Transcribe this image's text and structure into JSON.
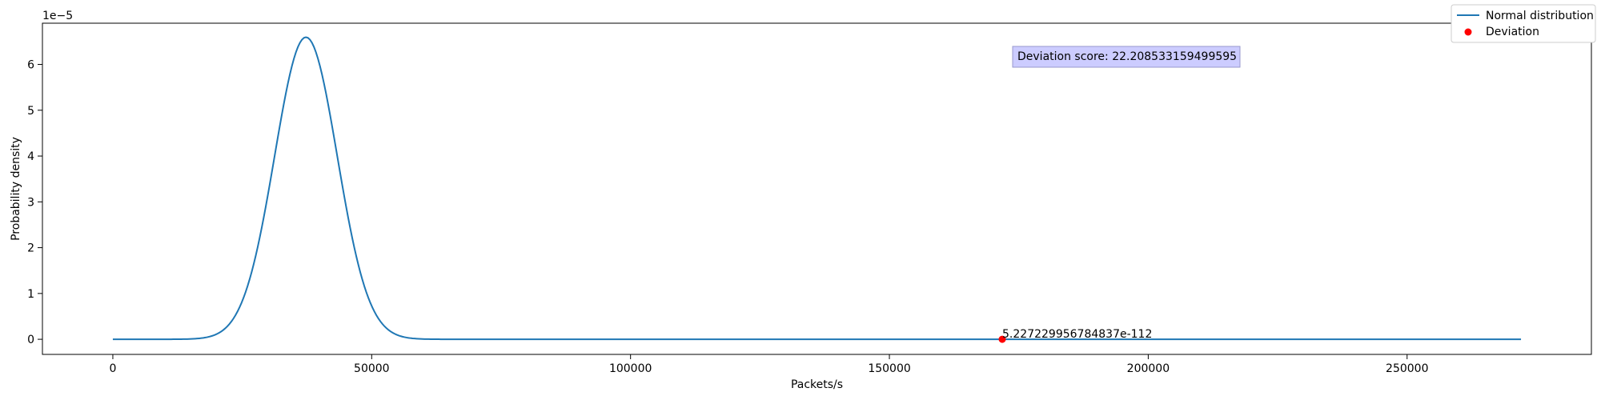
{
  "chart_data": {
    "type": "line",
    "xlabel": "Packets/s",
    "ylabel": "Probability density",
    "y_scale_label": "1e−5",
    "xlim": [
      -13600,
      285600
    ],
    "ylim": [
      -0.33,
      6.9
    ],
    "xticks": [
      0,
      50000,
      100000,
      150000,
      200000,
      250000
    ],
    "xtick_labels": [
      "0",
      "50000",
      "100000",
      "150000",
      "200000",
      "250000"
    ],
    "yticks": [
      0,
      1,
      2,
      3,
      4,
      5,
      6
    ],
    "ytick_labels": [
      "0",
      "1",
      "2",
      "3",
      "4",
      "5",
      "6"
    ],
    "grid": false,
    "legend_position": "top-right",
    "series": [
      {
        "name": "Normal distribution",
        "kind": "line",
        "color": "#1f77b4",
        "distribution": {
          "mean": 37300,
          "std": 6050,
          "x_start": 0,
          "x_end": 272000
        }
      },
      {
        "name": "Deviation",
        "kind": "scatter",
        "color": "#ff0000",
        "points": [
          {
            "x": 171800,
            "y": 0,
            "label": "5.227229956784837e-112"
          }
        ]
      }
    ],
    "annotation": {
      "text": "Deviation score: 22.208533159499595",
      "background": "#ccccff",
      "border": "#9999cc"
    }
  }
}
